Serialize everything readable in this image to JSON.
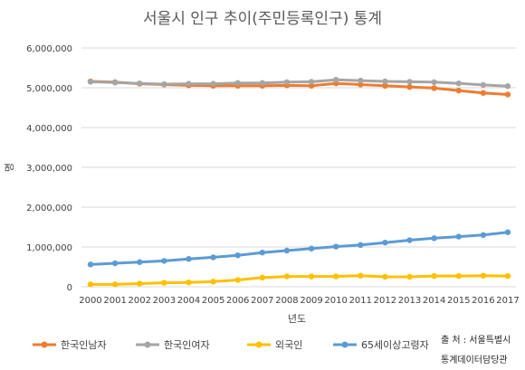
{
  "chart_data": {
    "type": "line",
    "title": "서울시 인구 추이(주민등록인구) 통계",
    "xlabel": "년도",
    "ylabel": "명",
    "ylim": [
      0,
      6000000
    ],
    "yticks": [
      0,
      1000000,
      2000000,
      3000000,
      4000000,
      5000000,
      6000000
    ],
    "ytick_labels": [
      "0",
      "1,000,000",
      "2,000,000",
      "3,000,000",
      "4,000,000",
      "5,000,000",
      "6,000,000"
    ],
    "grid": true,
    "legend_position": "bottom",
    "x": [
      "2000",
      "2001",
      "2002",
      "2003",
      "2004",
      "2005",
      "2006",
      "2007",
      "2008",
      "2009",
      "2010",
      "2011",
      "2012",
      "2013",
      "2014",
      "2015",
      "2016",
      "2017"
    ],
    "series": [
      {
        "name": "한국인남자",
        "color": "#ED7D31",
        "values": [
          5160000,
          5140000,
          5100000,
          5080000,
          5060000,
          5050000,
          5050000,
          5050000,
          5060000,
          5050000,
          5110000,
          5080000,
          5050000,
          5020000,
          4990000,
          4930000,
          4870000,
          4830000
        ]
      },
      {
        "name": "한국인여자",
        "color": "#A5A5A5",
        "values": [
          5150000,
          5130000,
          5110000,
          5090000,
          5100000,
          5100000,
          5120000,
          5120000,
          5140000,
          5150000,
          5200000,
          5180000,
          5160000,
          5150000,
          5140000,
          5110000,
          5070000,
          5040000
        ]
      },
      {
        "name": "외국인",
        "color": "#FFC000",
        "values": [
          60000,
          60000,
          80000,
          100000,
          110000,
          130000,
          170000,
          230000,
          260000,
          260000,
          260000,
          280000,
          250000,
          250000,
          270000,
          270000,
          280000,
          270000
        ]
      },
      {
        "name": "65세이상고령자",
        "color": "#5B9BD5",
        "values": [
          560000,
          590000,
          620000,
          650000,
          700000,
          740000,
          790000,
          860000,
          910000,
          960000,
          1010000,
          1050000,
          1110000,
          1170000,
          1220000,
          1260000,
          1300000,
          1370000
        ]
      }
    ],
    "source_lines": [
      "출 처 : 서울특별시",
      "통계데이터담당관"
    ]
  }
}
